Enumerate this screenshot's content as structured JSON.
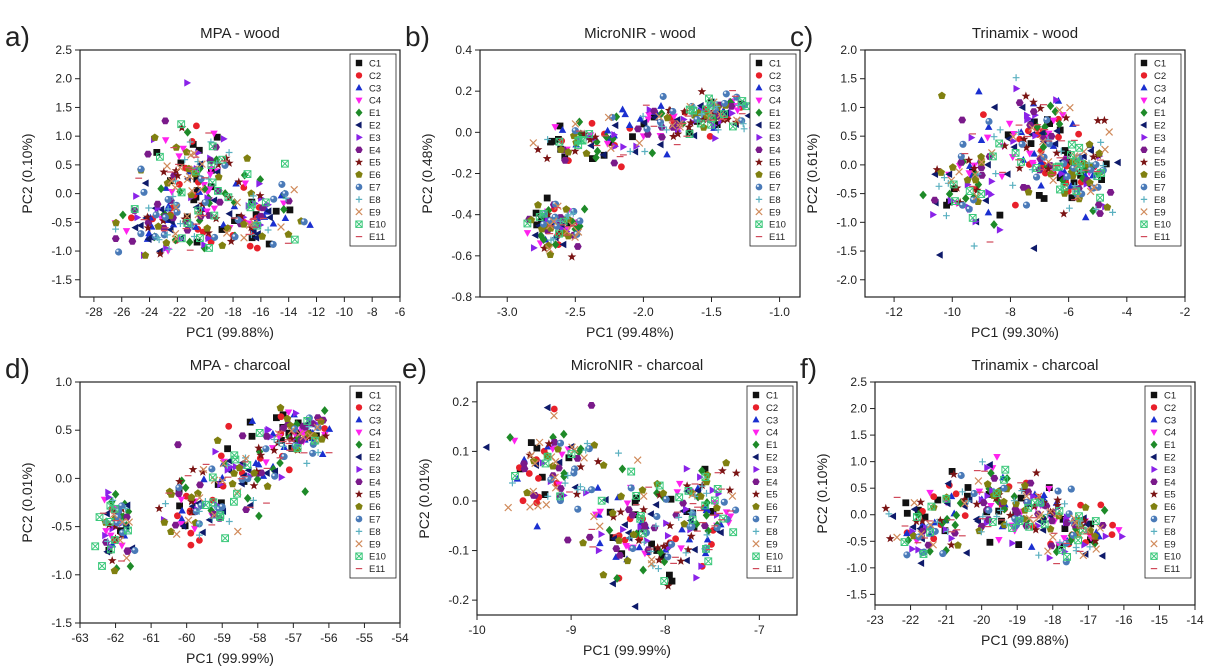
{
  "figure": {
    "series_names": [
      "C1",
      "C2",
      "C3",
      "C4",
      "E1",
      "E2",
      "E3",
      "E4",
      "E5",
      "E6",
      "E7",
      "E8",
      "E9",
      "E10",
      "E11"
    ],
    "series_colors": [
      "#111111",
      "#e8202a",
      "#1a2fd0",
      "#ff22ee",
      "#1e8a28",
      "#0e1a6a",
      "#8a22e8",
      "#7a1a8a",
      "#7a1414",
      "#808010",
      "#4a7ab8",
      "#5ab0c0",
      "#d08a5a",
      "#3ac87a",
      "#d04a5a"
    ],
    "series_markers": [
      "square",
      "circle",
      "triangle-up",
      "triangle-down",
      "diamond",
      "triangle-left",
      "triangle-right",
      "hexagon",
      "star",
      "pentagon",
      "sphere",
      "plus",
      "x",
      "x-square",
      "dash"
    ]
  },
  "chart_data": [
    {
      "type": "scatter",
      "panel_label": "a)",
      "title": "MPA - wood",
      "xlabel": "PC1 (99.88%)",
      "ylabel": "PC2 (0.10%)",
      "xlim": [
        -29,
        -6
      ],
      "ylim": [
        -1.8,
        2.5
      ],
      "xticks": [
        -28,
        -26,
        -24,
        -22,
        -20,
        -18,
        -16,
        -14,
        -12,
        -10,
        -8,
        -6
      ],
      "yticks": [
        -1.5,
        -1.0,
        -0.5,
        0.0,
        0.5,
        1.0,
        1.5,
        2.0,
        2.5
      ],
      "xtick_labels": [
        "-28",
        "-26",
        "-24",
        "-22",
        "-20",
        "-18",
        "-16",
        "-14",
        "-12",
        "-10",
        "-8",
        "-6"
      ],
      "ytick_labels": [
        "-1.5",
        "-1.0",
        "-0.5",
        "0.0",
        "0.5",
        "1.0",
        "1.5",
        "2.0",
        "2.5"
      ],
      "legend": "top-right",
      "clusters": [
        {
          "cx": -20.5,
          "cy": 0.0,
          "sx": 3.0,
          "sy": 0.55
        },
        {
          "cx": -21.0,
          "cy": 0.5,
          "sx": 2.0,
          "sy": 0.5
        },
        {
          "cx": -16.0,
          "cy": -0.4,
          "sx": 2.0,
          "sy": 0.4
        },
        {
          "cx": -22.5,
          "cy": -0.6,
          "sx": 2.5,
          "sy": 0.3
        }
      ],
      "n_points": 24
    },
    {
      "type": "scatter",
      "panel_label": "b)",
      "title": "MicroNIR - wood",
      "xlabel": "PC1 (99.48%)",
      "ylabel": "PC2 (0.48%)",
      "xlim": [
        -3.2,
        -0.85
      ],
      "ylim": [
        -0.8,
        0.4
      ],
      "xticks": [
        -3.0,
        -2.5,
        -2.0,
        -1.5,
        -1.0
      ],
      "yticks": [
        -0.8,
        -0.6,
        -0.4,
        -0.2,
        0.0,
        0.2,
        0.4
      ],
      "xtick_labels": [
        "-3.0",
        "-2.5",
        "-2.0",
        "-1.5",
        "-1.0"
      ],
      "ytick_labels": [
        "-0.8",
        "-0.6",
        "-0.4",
        "-0.2",
        "0.0",
        "0.2",
        "0.4"
      ],
      "legend": "top-right",
      "clusters": [
        {
          "cx": -1.8,
          "cy": 0.05,
          "sx": 0.28,
          "sy": 0.07
        },
        {
          "cx": -1.45,
          "cy": 0.1,
          "sx": 0.17,
          "sy": 0.06
        },
        {
          "cx": -2.35,
          "cy": -0.05,
          "sx": 0.25,
          "sy": 0.07
        },
        {
          "cx": -2.65,
          "cy": -0.45,
          "sx": 0.12,
          "sy": 0.07
        }
      ],
      "n_points": 24
    },
    {
      "type": "scatter",
      "panel_label": "c)",
      "title": "Trinamix - wood",
      "xlabel": "PC1 (99.30%)",
      "ylabel": "PC2 (0.61%)",
      "xlim": [
        -13,
        -2
      ],
      "ylim": [
        -2.3,
        2.0
      ],
      "xticks": [
        -12,
        -10,
        -8,
        -6,
        -4,
        -2
      ],
      "yticks": [
        -2.0,
        -1.5,
        -1.0,
        -0.5,
        0.0,
        0.5,
        1.0,
        1.5,
        2.0
      ],
      "xtick_labels": [
        "-12",
        "-10",
        "-8",
        "-6",
        "-4",
        "-2"
      ],
      "ytick_labels": [
        "-2.0",
        "-1.5",
        "-1.0",
        "-0.5",
        "0.0",
        "0.5",
        "1.0",
        "1.5",
        "2.0"
      ],
      "legend": "top-right",
      "clusters": [
        {
          "cx": -6.5,
          "cy": 0.1,
          "sx": 1.1,
          "sy": 0.55
        },
        {
          "cx": -7.5,
          "cy": 0.5,
          "sx": 1.0,
          "sy": 0.5
        },
        {
          "cx": -9.5,
          "cy": -0.3,
          "sx": 0.9,
          "sy": 0.6
        },
        {
          "cx": -5.5,
          "cy": -0.2,
          "sx": 0.8,
          "sy": 0.4
        }
      ],
      "n_points": 24
    },
    {
      "type": "scatter",
      "panel_label": "d)",
      "title": "MPA - charcoal",
      "xlabel": "PC1 (99.99%)",
      "ylabel": "PC2 (0.01%)",
      "xlim": [
        -63,
        -54
      ],
      "ylim": [
        -1.5,
        1.0
      ],
      "xticks": [
        -63,
        -62,
        -61,
        -60,
        -59,
        -58,
        -57,
        -56,
        -55,
        -54
      ],
      "yticks": [
        -1.5,
        -1.0,
        -0.5,
        0.0,
        0.5,
        1.0
      ],
      "xtick_labels": [
        "-63",
        "-62",
        "-61",
        "-60",
        "-59",
        "-58",
        "-57",
        "-56",
        "-55",
        "-54"
      ],
      "ytick_labels": [
        "-1.5",
        "-1.0",
        "-0.5",
        "0.0",
        "0.5",
        "1.0"
      ],
      "legend": "top-right",
      "clusters": [
        {
          "cx": -58.5,
          "cy": 0.05,
          "sx": 0.9,
          "sy": 0.25
        },
        {
          "cx": -56.8,
          "cy": 0.45,
          "sx": 0.6,
          "sy": 0.15
        },
        {
          "cx": -59.8,
          "cy": -0.35,
          "sx": 0.6,
          "sy": 0.2
        },
        {
          "cx": -62.0,
          "cy": -0.5,
          "sx": 0.3,
          "sy": 0.25
        }
      ],
      "n_points": 24
    },
    {
      "type": "scatter",
      "panel_label": "e)",
      "title": "MicroNIR - charcoal",
      "xlabel": "PC1 (99.99%)",
      "ylabel": "PC2 (0.01%)",
      "xlim": [
        -10,
        -6.6
      ],
      "ylim": [
        -0.23,
        0.24
      ],
      "xticks": [
        -10,
        -9,
        -8,
        -7
      ],
      "yticks": [
        -0.2,
        -0.1,
        0.0,
        0.1,
        0.2
      ],
      "xtick_labels": [
        "-10",
        "-9",
        "-8",
        "-7"
      ],
      "ytick_labels": [
        "-0.2",
        "-0.1",
        "0.0",
        "0.1",
        "0.2"
      ],
      "legend": "top-right",
      "clusters": [
        {
          "cx": -8.4,
          "cy": -0.03,
          "sx": 0.45,
          "sy": 0.06
        },
        {
          "cx": -9.2,
          "cy": 0.07,
          "sx": 0.35,
          "sy": 0.06
        },
        {
          "cx": -8.0,
          "cy": -0.1,
          "sx": 0.4,
          "sy": 0.05
        },
        {
          "cx": -7.6,
          "cy": 0.0,
          "sx": 0.25,
          "sy": 0.05
        }
      ],
      "n_points": 24
    },
    {
      "type": "scatter",
      "panel_label": "f)",
      "title": "Trinamix - charcoal",
      "xlabel": "PC1 (99.88%)",
      "ylabel": "PC2 (0.10%)",
      "xlim": [
        -23,
        -14
      ],
      "ylim": [
        -1.7,
        2.5
      ],
      "xticks": [
        -23,
        -22,
        -21,
        -20,
        -19,
        -18,
        -17,
        -16,
        -15,
        -14
      ],
      "yticks": [
        -1.5,
        -1.0,
        -0.5,
        0.0,
        0.5,
        1.0,
        1.5,
        2.0,
        2.5
      ],
      "xtick_labels": [
        "-23",
        "-22",
        "-21",
        "-20",
        "-19",
        "-18",
        "-17",
        "-16",
        "-15",
        "-14"
      ],
      "ytick_labels": [
        "-1.5",
        "-1.0",
        "-0.5",
        "0.0",
        "0.5",
        "1.0",
        "1.5",
        "2.0",
        "2.5"
      ],
      "legend": "top-right",
      "clusters": [
        {
          "cx": -18.5,
          "cy": 0.0,
          "sx": 1.0,
          "sy": 0.45
        },
        {
          "cx": -19.8,
          "cy": 0.3,
          "sx": 0.8,
          "sy": 0.5
        },
        {
          "cx": -17.3,
          "cy": -0.3,
          "sx": 0.7,
          "sy": 0.35
        },
        {
          "cx": -21.5,
          "cy": -0.3,
          "sx": 0.8,
          "sy": 0.4
        }
      ],
      "n_points": 24
    }
  ]
}
